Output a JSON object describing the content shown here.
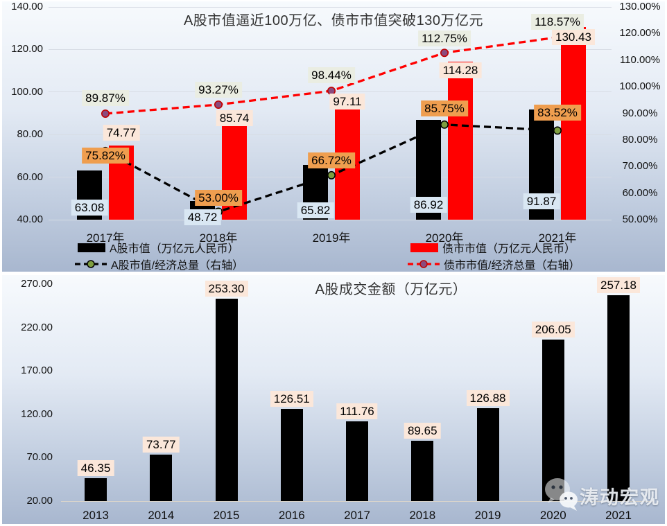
{
  "watermark": {
    "text": "涛动宏观",
    "icon": "wechat-icon"
  },
  "chart_data": [
    {
      "type": "bar+line combo",
      "title": "A股市值逼近100万亿、债市市值突破130万亿元",
      "categories": [
        "2017年",
        "2018年",
        "2019年",
        "2020年",
        "2021年"
      ],
      "left_axis": {
        "ticks": [
          140,
          120,
          100,
          80,
          60,
          40
        ],
        "min": 40,
        "max": 140,
        "format": "0.00"
      },
      "right_axis": {
        "ticks": [
          130,
          120,
          110,
          100,
          90,
          80,
          70,
          60,
          50
        ],
        "min": 50,
        "max": 130,
        "format": "0.00%"
      },
      "grid": "horizontal-left-axis",
      "legend_position": "bottom-two-columns",
      "series": [
        {
          "name": "A股市值（万亿元人民币）",
          "type": "bar",
          "axis": "left",
          "color": "#000000",
          "values": [
            63.08,
            48.72,
            65.82,
            86.92,
            91.87
          ],
          "label_bg": "#d9e7f3",
          "label_dy": [
            -6,
            8,
            -2,
            -10,
            -15
          ]
        },
        {
          "name": "债市市值（万亿元人民币）",
          "type": "bar",
          "axis": "left",
          "color": "#ff0000",
          "values": [
            74.77,
            85.74,
            97.11,
            114.28,
            130.43
          ],
          "label_bg": "#fbe7da",
          "label_dy": [
            -7,
            5,
            16,
            24,
            26
          ]
        },
        {
          "name": "A股市值/经济总量（右轴）",
          "type": "line",
          "axis": "right",
          "color": "#000000",
          "marker_fill": "#7e9e3f",
          "marker_stroke": "#000000",
          "values": [
            75.82,
            53.0,
            66.72,
            85.75,
            83.52
          ],
          "label_bg": "#ef9e4f",
          "label_dy": [
            7,
            -20,
            -21,
            -23,
            -26
          ]
        },
        {
          "name": "债市市值/经济总量（右轴）",
          "type": "line",
          "axis": "right",
          "color": "#ff0000",
          "marker_fill": "#8b4b7e",
          "marker_stroke": "#c00000",
          "values": [
            89.87,
            93.27,
            98.44,
            112.75,
            118.57
          ],
          "label_bg": "#eaede2",
          "label_dy": [
            -22,
            -21,
            -23,
            -21,
            -22
          ]
        }
      ]
    },
    {
      "type": "bar",
      "title": "A股成交金额（万亿元）",
      "categories": [
        "2013",
        "2014",
        "2015",
        "2016",
        "2017",
        "2018",
        "2019",
        "2020",
        "2021"
      ],
      "left_axis": {
        "ticks": [
          270,
          220,
          170,
          120,
          70,
          20
        ],
        "min": 20,
        "max": 270,
        "format": "0.00"
      },
      "grid": "baseline-only",
      "series": [
        {
          "name": "A股成交金额",
          "type": "bar",
          "axis": "left",
          "color": "#000000",
          "values": [
            46.35,
            73.77,
            253.3,
            126.51,
            111.76,
            89.65,
            126.88,
            206.05,
            257.18
          ],
          "label_bg": "#fbe7da"
        }
      ]
    }
  ]
}
